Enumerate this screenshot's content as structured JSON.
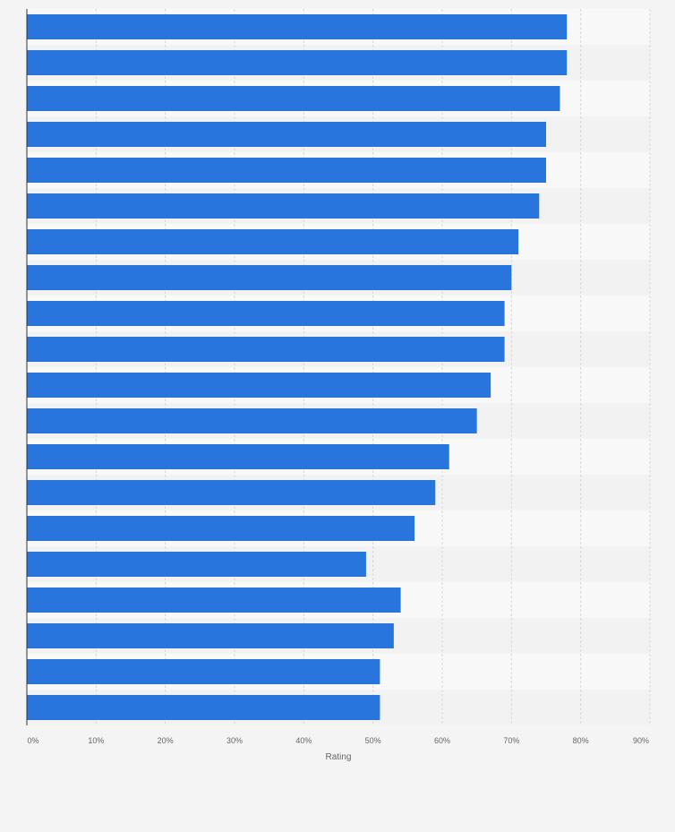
{
  "chart_data": {
    "type": "bar",
    "orientation": "horizontal",
    "xlabel": "Rating",
    "xlim": [
      0,
      90
    ],
    "x_ticks": [
      0,
      10,
      20,
      30,
      40,
      50,
      60,
      70,
      80,
      90
    ],
    "x_tick_labels": [
      "0%",
      "10%",
      "20%",
      "30%",
      "40%",
      "50%",
      "60%",
      "70%",
      "80%",
      "90%"
    ],
    "values": [
      78,
      78,
      77,
      75,
      75,
      74,
      71,
      70,
      69,
      69,
      67,
      65,
      61,
      59,
      56,
      49,
      54,
      53,
      51,
      51
    ],
    "grid": true,
    "legend": "none"
  },
  "colors": {
    "bar": "#2876dd",
    "background": "#f4f4f4",
    "plot_band_light": "#f8f8f8",
    "plot_band_dark": "#f2f2f2",
    "grid": "#d9d9d9",
    "axis": "#333333",
    "text": "#666666"
  }
}
